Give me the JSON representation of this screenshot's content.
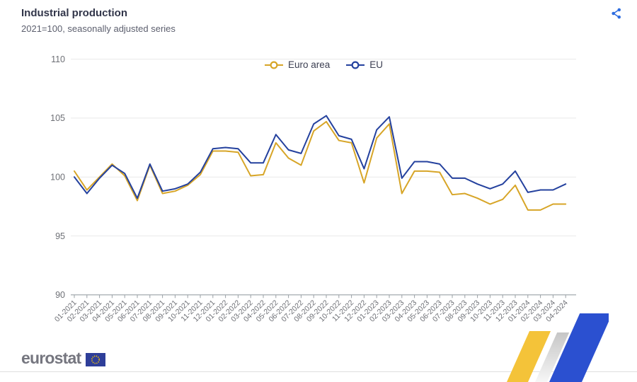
{
  "header": {
    "title": "Industrial production",
    "subtitle": "2021=100, seasonally adjusted series"
  },
  "toolbar": {
    "share_icon": "share-icon",
    "share_color": "#2d6ce0"
  },
  "chart_data": {
    "type": "line",
    "title": "Industrial production",
    "subtitle": "2021=100, seasonally adjusted series",
    "legend_position": "top-center",
    "grid": "horizontal",
    "ylim": [
      90,
      110
    ],
    "y_ticks": [
      110,
      105,
      100,
      95,
      90
    ],
    "categories": [
      "01-2021",
      "02-2021",
      "03-2021",
      "04-2021",
      "05-2021",
      "06-2021",
      "07-2021",
      "08-2021",
      "09-2021",
      "10-2021",
      "11-2021",
      "12-2021",
      "01-2022",
      "02-2022",
      "03-2022",
      "04-2022",
      "05-2022",
      "06-2022",
      "07-2022",
      "08-2022",
      "09-2022",
      "10-2022",
      "11-2022",
      "12-2022",
      "01-2023",
      "02-2023",
      "03-2023",
      "04-2023",
      "05-2023",
      "06-2023",
      "07-2023",
      "08-2023",
      "09-2023",
      "10-2023",
      "11-2023",
      "12-2023",
      "01-2024",
      "02-2024",
      "03-2024",
      "04-2024"
    ],
    "series": [
      {
        "name": "Euro area",
        "color": "#d7a527",
        "values": [
          100.5,
          98.9,
          100.0,
          101.1,
          100.1,
          98.0,
          101.0,
          98.6,
          98.8,
          99.3,
          100.2,
          102.2,
          102.2,
          102.1,
          100.1,
          100.2,
          102.9,
          101.6,
          101.0,
          103.9,
          104.7,
          103.1,
          102.9,
          99.5,
          103.3,
          104.5,
          98.6,
          100.5,
          100.5,
          100.4,
          98.5,
          98.6,
          98.2,
          97.7,
          98.1,
          99.3,
          97.2,
          97.2,
          97.7,
          97.7
        ]
      },
      {
        "name": "EU",
        "color": "#24419e",
        "values": [
          100.0,
          98.6,
          99.9,
          101.0,
          100.3,
          98.2,
          101.1,
          98.8,
          99.0,
          99.4,
          100.4,
          102.4,
          102.5,
          102.4,
          101.2,
          101.2,
          103.6,
          102.3,
          102.0,
          104.5,
          105.2,
          103.5,
          103.2,
          100.7,
          104.0,
          105.1,
          99.9,
          101.3,
          101.3,
          101.1,
          99.9,
          99.9,
          99.4,
          99.0,
          99.4,
          100.5,
          98.7,
          98.9,
          98.9,
          99.4
        ]
      }
    ],
    "axis_colors": {
      "grid": "#e9e9e9",
      "axis_line": "#9aa0a6",
      "tick_label": "#6e7076"
    }
  },
  "footer": {
    "logo_text": "eurostat",
    "flag_icon": "eu-flag-icon",
    "flag_blue": "#2e3e99",
    "star_yellow": "#ffcc00",
    "ribbon_yellow": "#f4c339",
    "ribbon_blue": "#2b50d0"
  }
}
